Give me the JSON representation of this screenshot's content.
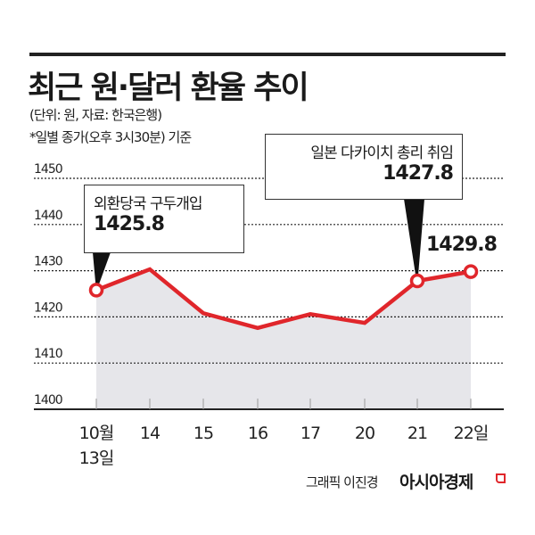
{
  "header": {
    "title": "최근 원·달러 환율 추이",
    "subtitle_unit": "(단위: 원, 자료: 한국은행)",
    "subtitle_note": "*일별 종가(오후 3시30분) 기준"
  },
  "annotations": {
    "left_callout": {
      "text": "외환당국 구두개입",
      "value": "1425.8"
    },
    "right_callout": {
      "text": "일본 다카이치 총리 취임",
      "value": "1427.8"
    },
    "end_label": "1429.8"
  },
  "footer": {
    "credit": "그래픽 이진경",
    "brand": "아시아경제"
  },
  "colors": {
    "line": "#e0262b",
    "fill": "#e6e6ea",
    "text": "#1a1a1a"
  },
  "chart_data": {
    "type": "area",
    "title": "최근 원·달러 환율 추이",
    "subtitle": "(단위: 원, 자료: 한국은행) *일별 종가(오후 3시30분) 기준",
    "xlabel": "",
    "ylabel": "원",
    "categories": [
      "10월 13일",
      "14",
      "15",
      "16",
      "17",
      "20",
      "21",
      "22일"
    ],
    "x_tick_lines": [
      [
        "10월",
        "13일"
      ],
      [
        "14"
      ],
      [
        "15"
      ],
      [
        "16"
      ],
      [
        "17"
      ],
      [
        "20"
      ],
      [
        "21"
      ],
      [
        "22일"
      ]
    ],
    "series": [
      {
        "name": "원·달러 환율",
        "values": [
          1425.8,
          1430.3,
          1420.8,
          1417.6,
          1420.6,
          1418.7,
          1427.8,
          1429.8
        ]
      }
    ],
    "ylim": [
      1400,
      1450
    ],
    "yticks": [
      1400,
      1410,
      1420,
      1430,
      1440,
      1450
    ],
    "grid": true,
    "legend": "none",
    "highlighted_points": [
      {
        "category": "10월 13일",
        "value": 1425.8,
        "label": "외환당국 구두개입"
      },
      {
        "category": "21",
        "value": 1427.8,
        "label": "일본 다카이치 총리 취임"
      },
      {
        "category": "22일",
        "value": 1429.8,
        "label": "1429.8"
      }
    ]
  }
}
